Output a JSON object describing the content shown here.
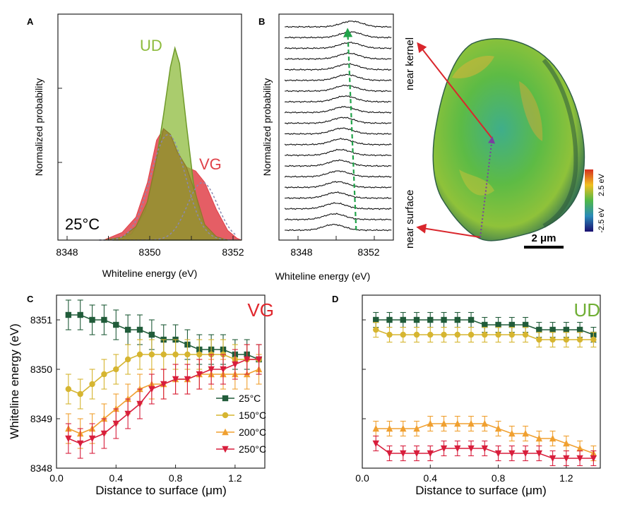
{
  "colors": {
    "ud_green": "#8dbb3c",
    "vg_red": "#e0424a",
    "olive_overlap": "#9a8a32",
    "dashed_gray": "#8a8ab0",
    "series_25": "#215c3a",
    "series_150": "#d6b530",
    "series_200": "#f0a030",
    "series_250": "#d81e3c",
    "arrow_red": "#d9262c",
    "arrow_green": "#21a34a"
  },
  "panels": {
    "A": {
      "label": "A",
      "ylabel": "Normalized probability",
      "xlabel": "Whiteline energy (eV)",
      "temp": "25°C",
      "ud_label": "UD",
      "vg_label": "VG",
      "xticks": [
        "8348",
        "8350",
        "8352"
      ]
    },
    "B": {
      "label": "B",
      "ylabel": "Normalized probability",
      "xlabel": "Whiteline energy (eV)",
      "xticks": [
        "8348",
        "8352"
      ],
      "near_kernel": "near kernel",
      "near_surface": "near surface",
      "scale_bar": "2 μm",
      "colorbar_top": "2.5 eV",
      "colorbar_bottom": "-2.5 eV"
    },
    "C": {
      "label": "C",
      "title": "VG",
      "xlabel": "Distance to surface (μm)",
      "ylabel": "Whiteline energy (eV)"
    },
    "D": {
      "label": "D",
      "title": "UD",
      "xlabel": "Distance to surface (μm)"
    }
  },
  "chart_data": [
    {
      "panel": "A",
      "type": "area",
      "title": "",
      "xlabel": "Whiteline energy (eV)",
      "ylabel": "Normalized probability",
      "xlim": [
        8348,
        8352
      ],
      "annotation": "25°C",
      "series": [
        {
          "name": "UD",
          "x": [
            8349.2,
            8349.6,
            8349.9,
            8350.1,
            8350.3,
            8350.45,
            8350.55,
            8350.65,
            8350.8,
            8350.95,
            8351.1,
            8351.3,
            8351.5,
            8351.7
          ],
          "values": [
            0.0,
            0.03,
            0.15,
            0.35,
            0.65,
            0.9,
            1.0,
            0.92,
            0.6,
            0.3,
            0.12,
            0.04,
            0.01,
            0.0
          ]
        },
        {
          "name": "VG",
          "x": [
            8349.0,
            8349.4,
            8349.7,
            8349.95,
            8350.15,
            8350.3,
            8350.45,
            8350.6,
            8350.8,
            8351.0,
            8351.2,
            8351.45,
            8351.7,
            8351.9,
            8352.0
          ],
          "values": [
            0.0,
            0.04,
            0.12,
            0.3,
            0.52,
            0.58,
            0.55,
            0.46,
            0.38,
            0.36,
            0.3,
            0.16,
            0.05,
            0.01,
            0.0
          ]
        }
      ]
    },
    {
      "panel": "B",
      "type": "line",
      "xlabel": "Whiteline energy (eV)",
      "ylabel": "Normalized probability",
      "xlim": [
        8347,
        8353
      ],
      "stacked_profiles": 20,
      "peak_positions": [
        8350.82,
        8350.77,
        8350.72,
        8350.67,
        8350.62,
        8350.57,
        8350.52,
        8350.47,
        8350.42,
        8350.37,
        8350.32,
        8350.27,
        8350.22,
        8350.17,
        8350.12,
        8350.07,
        8350.02,
        8349.97,
        8349.92,
        8349.87
      ]
    },
    {
      "panel": "C",
      "type": "line",
      "title": "VG",
      "xlabel": "Distance to surface (μm)",
      "ylabel": "Whiteline energy (eV)",
      "xlim": [
        0.0,
        1.4
      ],
      "ylim": [
        8348,
        8351.5
      ],
      "xticks": [
        0.0,
        0.4,
        0.8,
        1.2
      ],
      "yticks": [
        8348,
        8349,
        8350,
        8351
      ],
      "x": [
        0.08,
        0.16,
        0.24,
        0.32,
        0.4,
        0.48,
        0.56,
        0.64,
        0.72,
        0.8,
        0.88,
        0.96,
        1.04,
        1.12,
        1.2,
        1.28,
        1.36
      ],
      "series": [
        {
          "name": "25°C",
          "marker": "square",
          "values": [
            8351.1,
            8351.1,
            8351.0,
            8351.0,
            8350.9,
            8350.8,
            8350.8,
            8350.7,
            8350.6,
            8350.6,
            8350.5,
            8350.4,
            8350.4,
            8350.4,
            8350.3,
            8350.3,
            8350.2
          ]
        },
        {
          "name": "150°C",
          "marker": "circle",
          "values": [
            8349.6,
            8349.5,
            8349.7,
            8349.9,
            8350.0,
            8350.2,
            8350.3,
            8350.3,
            8350.3,
            8350.3,
            8350.3,
            8350.3,
            8350.3,
            8350.3,
            8350.2,
            8350.2,
            8350.2
          ]
        },
        {
          "name": "200°C",
          "marker": "triangle",
          "values": [
            8348.8,
            8348.7,
            8348.8,
            8349.0,
            8349.2,
            8349.4,
            8349.6,
            8349.7,
            8349.7,
            8349.8,
            8349.8,
            8349.9,
            8349.9,
            8349.9,
            8349.9,
            8349.9,
            8350.0
          ]
        },
        {
          "name": "250°C",
          "marker": "triangle-down",
          "values": [
            8348.6,
            8348.5,
            8348.6,
            8348.7,
            8348.9,
            8349.1,
            8349.3,
            8349.6,
            8349.7,
            8349.8,
            8349.8,
            8349.9,
            8350.0,
            8350.0,
            8350.1,
            8350.2,
            8350.2
          ]
        }
      ],
      "error": 0.3,
      "legend": "bottom-right"
    },
    {
      "panel": "D",
      "type": "line",
      "title": "UD",
      "xlabel": "Distance to surface (μm)",
      "xlim": [
        0.0,
        1.4
      ],
      "ylim": [
        8348,
        8351.5
      ],
      "xticks": [
        0.0,
        0.4,
        0.8,
        1.2
      ],
      "x": [
        0.08,
        0.16,
        0.24,
        0.32,
        0.4,
        0.48,
        0.56,
        0.64,
        0.72,
        0.8,
        0.88,
        0.96,
        1.04,
        1.12,
        1.2,
        1.28,
        1.36
      ],
      "series": [
        {
          "name": "25°C",
          "marker": "square",
          "values": [
            8351.0,
            8351.0,
            8351.0,
            8351.0,
            8351.0,
            8351.0,
            8351.0,
            8351.0,
            8350.9,
            8350.9,
            8350.9,
            8350.9,
            8350.8,
            8350.8,
            8350.8,
            8350.8,
            8350.7
          ]
        },
        {
          "name": "150°C",
          "marker": "circle",
          "values": [
            8350.8,
            8350.7,
            8350.7,
            8350.7,
            8350.7,
            8350.7,
            8350.7,
            8350.7,
            8350.7,
            8350.7,
            8350.7,
            8350.7,
            8350.6,
            8350.6,
            8350.6,
            8350.6,
            8350.6
          ]
        },
        {
          "name": "200°C",
          "marker": "triangle",
          "values": [
            8348.8,
            8348.8,
            8348.8,
            8348.8,
            8348.9,
            8348.9,
            8348.9,
            8348.9,
            8348.9,
            8348.8,
            8348.7,
            8348.7,
            8348.6,
            8348.6,
            8348.5,
            8348.4,
            8348.3
          ]
        },
        {
          "name": "250°C",
          "marker": "triangle-down",
          "values": [
            8348.5,
            8348.3,
            8348.3,
            8348.3,
            8348.3,
            8348.4,
            8348.4,
            8348.4,
            8348.4,
            8348.3,
            8348.3,
            8348.3,
            8348.3,
            8348.2,
            8348.2,
            8348.2,
            8348.2
          ]
        }
      ],
      "error": 0.15
    }
  ]
}
